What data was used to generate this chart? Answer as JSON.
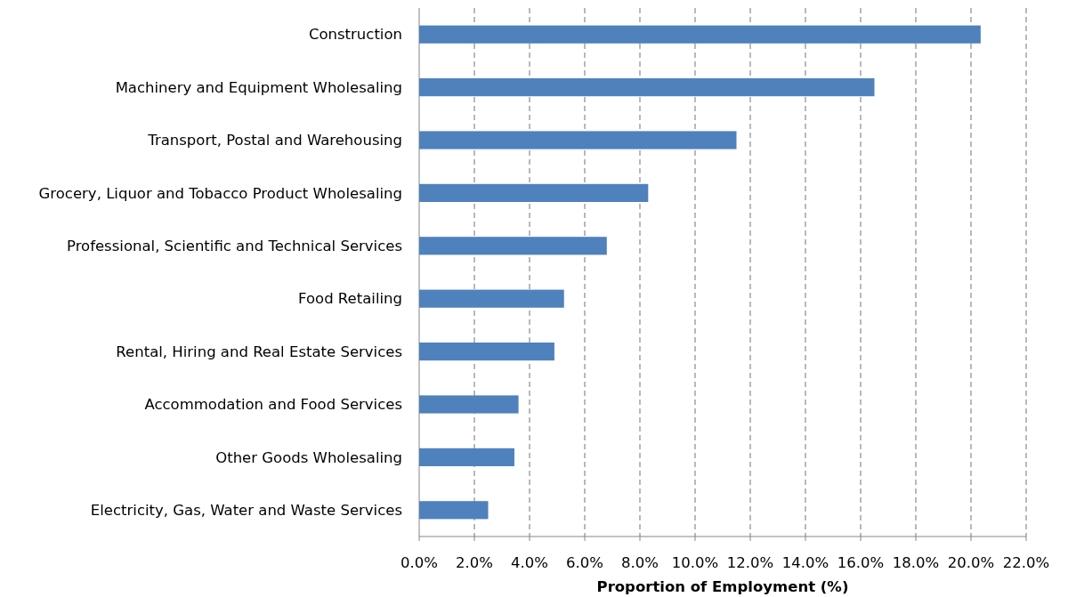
{
  "chart_data": {
    "type": "bar",
    "orientation": "horizontal",
    "xlabel": "Proportion of Employment (%)",
    "categories": [
      "Construction",
      "Machinery and Equipment Wholesaling",
      "Transport, Postal and Warehousing",
      "Grocery, Liquor and Tobacco Product Wholesaling",
      "Professional, Scientific and Technical Services",
      "Food Retailing",
      "Rental, Hiring and Real Estate Services",
      "Accommodation and Food Services",
      "Other Goods Wholesaling",
      "Electricity, Gas, Water and Waste Services"
    ],
    "values": [
      20.35,
      16.5,
      11.5,
      8.3,
      6.8,
      5.25,
      4.9,
      3.6,
      3.45,
      2.5
    ],
    "color": "#4f81bd",
    "xlim": [
      0,
      22
    ],
    "xticks": [
      {
        "value": 0,
        "label": "0.0%"
      },
      {
        "value": 2,
        "label": "2.0%"
      },
      {
        "value": 4,
        "label": "4.0%"
      },
      {
        "value": 6,
        "label": "6.0%"
      },
      {
        "value": 8,
        "label": "8.0%"
      },
      {
        "value": 10,
        "label": "10.0%"
      },
      {
        "value": 12,
        "label": "12.0%"
      },
      {
        "value": 14,
        "label": "14.0%"
      },
      {
        "value": 16,
        "label": "16.0%"
      },
      {
        "value": 18,
        "label": "18.0%"
      },
      {
        "value": 20,
        "label": "20.0%"
      },
      {
        "value": 22,
        "label": "22.0%"
      }
    ],
    "grid": "x"
  }
}
